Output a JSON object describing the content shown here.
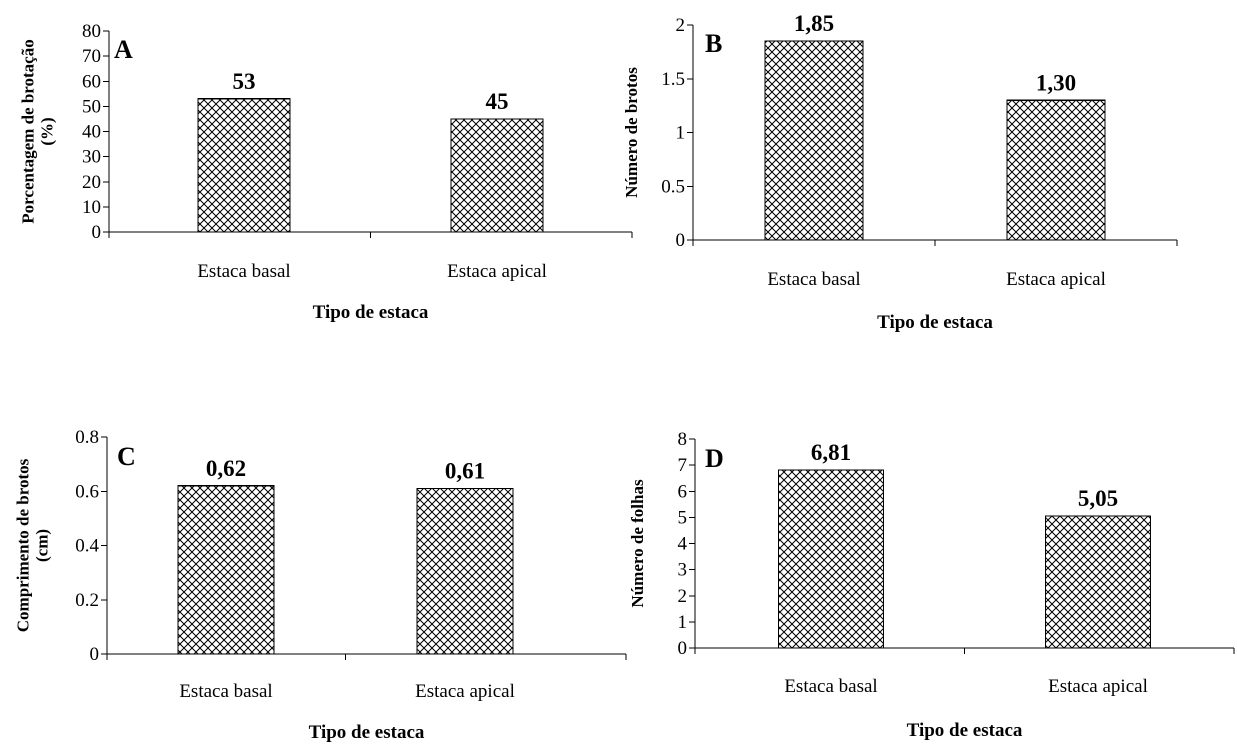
{
  "chart_data": [
    {
      "panel": "A",
      "type": "bar",
      "categories": [
        "Estaca basal",
        "Estaca apical"
      ],
      "values": [
        53,
        45
      ],
      "data_labels": [
        "53",
        "45"
      ],
      "xlabel": "Tipo de estaca",
      "ylabel": [
        "Porcentagem de brotação",
        "(%)"
      ],
      "ylim": [
        0,
        80
      ],
      "yticks": [
        0,
        10,
        20,
        30,
        40,
        50,
        60,
        70,
        80
      ],
      "ytick_labels": [
        "0",
        "10",
        "20",
        "30",
        "40",
        "50",
        "60",
        "70",
        "80"
      ],
      "grid": false,
      "fill": "crosshatch"
    },
    {
      "panel": "B",
      "type": "bar",
      "categories": [
        "Estaca basal",
        "Estaca apical"
      ],
      "values": [
        1.85,
        1.3
      ],
      "data_labels": [
        "1,85",
        "1,30"
      ],
      "xlabel": "Tipo de estaca",
      "ylabel": [
        "Número de brotos"
      ],
      "ylim": [
        0,
        2
      ],
      "yticks": [
        0,
        0.5,
        1,
        1.5,
        2
      ],
      "ytick_labels": [
        "0",
        "0.5",
        "1",
        "1.5",
        "2"
      ],
      "grid": false,
      "fill": "crosshatch"
    },
    {
      "panel": "C",
      "type": "bar",
      "categories": [
        "Estaca basal",
        "Estaca apical"
      ],
      "values": [
        0.62,
        0.61
      ],
      "data_labels": [
        "0,62",
        "0,61"
      ],
      "xlabel": "Tipo de estaca",
      "ylabel": [
        "Comprimento de brotos",
        "(cm)"
      ],
      "ylim": [
        0,
        0.8
      ],
      "yticks": [
        0,
        0.2,
        0.4,
        0.6,
        0.8
      ],
      "ytick_labels": [
        "0",
        "0.2",
        "0.4",
        "0.6",
        "0.8"
      ],
      "grid": false,
      "fill": "crosshatch"
    },
    {
      "panel": "D",
      "type": "bar",
      "categories": [
        "Estaca basal",
        "Estaca apical"
      ],
      "values": [
        6.81,
        5.05
      ],
      "data_labels": [
        "6,81",
        "5,05"
      ],
      "xlabel": "Tipo de estaca",
      "ylabel": [
        "Número de folhas"
      ],
      "ylim": [
        0,
        8
      ],
      "yticks": [
        0,
        1,
        2,
        3,
        4,
        5,
        6,
        7,
        8
      ],
      "ytick_labels": [
        "0",
        "1",
        "2",
        "3",
        "4",
        "5",
        "6",
        "7",
        "8"
      ],
      "grid": false,
      "fill": "crosshatch"
    }
  ]
}
